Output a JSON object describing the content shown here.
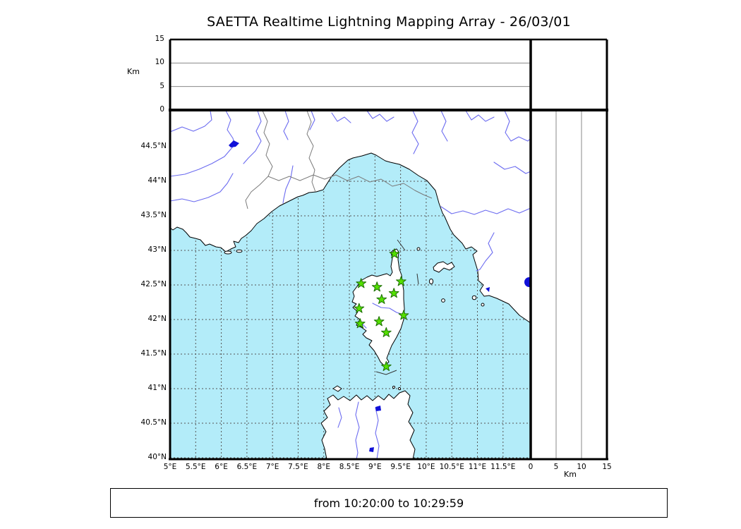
{
  "title": "SAETTA Realtime Lightning Mapping Array - 26/03/01",
  "footer": {
    "time_range": "from 10:20:00 to 10:29:59"
  },
  "colors": {
    "sea": "#b3ecf9",
    "land": "#ffffff",
    "river": "#6b6bf0",
    "lake": "#1010d8",
    "map_grid": "#555555",
    "panel_grid": "#888888",
    "frame": "#000000",
    "station_fill": "#55e000",
    "station_stroke": "#1b6e00"
  },
  "top_panel": {
    "axis_label": "Km",
    "ticks": [
      {
        "value": 0,
        "label": "0"
      },
      {
        "value": 5,
        "label": "5"
      },
      {
        "value": 10,
        "label": "10"
      },
      {
        "value": 15,
        "label": "15"
      }
    ],
    "gridlines": [
      5,
      10
    ],
    "range": [
      0,
      15
    ]
  },
  "right_panel": {
    "axis_label": "Km",
    "ticks": [
      {
        "value": 0,
        "label": "0"
      },
      {
        "value": 5,
        "label": "5"
      },
      {
        "value": 10,
        "label": "10"
      },
      {
        "value": 15,
        "label": "15"
      }
    ],
    "gridlines": [
      5,
      10
    ],
    "range": [
      0,
      15
    ]
  },
  "map": {
    "extent": {
      "lon_min": 5.0,
      "lon_max": 12.04,
      "lat_min": 40.0,
      "lat_max": 45.05
    },
    "lon_ticks": [
      {
        "value": 5,
        "label": "5°E"
      },
      {
        "value": 5.5,
        "label": "5.5°E"
      },
      {
        "value": 6,
        "label": "6°E"
      },
      {
        "value": 6.5,
        "label": "6.5°E"
      },
      {
        "value": 7,
        "label": "7°E"
      },
      {
        "value": 7.5,
        "label": "7.5°E"
      },
      {
        "value": 8,
        "label": "8°E"
      },
      {
        "value": 8.5,
        "label": "8.5°E"
      },
      {
        "value": 9,
        "label": "9°E"
      },
      {
        "value": 9.5,
        "label": "9.5°E"
      },
      {
        "value": 10,
        "label": "10°E"
      },
      {
        "value": 10.5,
        "label": "10.5°E"
      },
      {
        "value": 11,
        "label": "11°E"
      },
      {
        "value": 11.5,
        "label": "11.5°E"
      }
    ],
    "lat_ticks": [
      {
        "value": 40,
        "label": "40°N"
      },
      {
        "value": 40.5,
        "label": "40.5°N"
      },
      {
        "value": 41,
        "label": "41°N"
      },
      {
        "value": 41.5,
        "label": "41.5°N"
      },
      {
        "value": 42,
        "label": "42°N"
      },
      {
        "value": 42.5,
        "label": "42.5°N"
      },
      {
        "value": 43,
        "label": "43°N"
      },
      {
        "value": 43.5,
        "label": "43.5°N"
      },
      {
        "value": 44,
        "label": "44°N"
      },
      {
        "value": 44.5,
        "label": "44.5°N"
      }
    ],
    "stations": [
      {
        "lon": 9.38,
        "lat": 42.95
      },
      {
        "lon": 8.73,
        "lat": 42.52
      },
      {
        "lon": 9.04,
        "lat": 42.47
      },
      {
        "lon": 9.51,
        "lat": 42.55
      },
      {
        "lon": 9.37,
        "lat": 42.38
      },
      {
        "lon": 9.13,
        "lat": 42.29
      },
      {
        "lon": 8.69,
        "lat": 42.16
      },
      {
        "lon": 9.56,
        "lat": 42.06
      },
      {
        "lon": 8.71,
        "lat": 41.94
      },
      {
        "lon": 9.08,
        "lat": 41.97
      },
      {
        "lon": 9.22,
        "lat": 41.81
      },
      {
        "lon": 9.22,
        "lat": 41.32
      }
    ]
  }
}
